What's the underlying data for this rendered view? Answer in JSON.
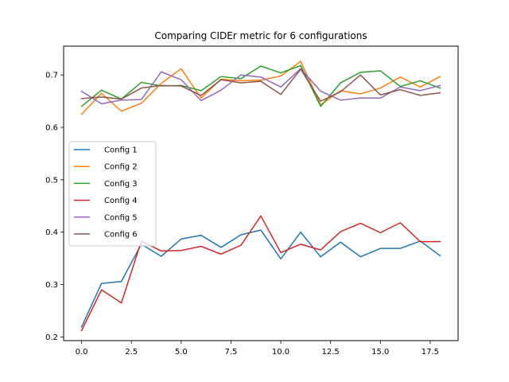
{
  "chart_data": {
    "type": "line",
    "title": "Comparing CIDEr metric for 6 configurations",
    "xlabel": "",
    "ylabel": "",
    "xlim": [
      -0.9,
      18.9
    ],
    "ylim": [
      0.193,
      0.755
    ],
    "xticks": [
      0.0,
      2.5,
      5.0,
      7.5,
      10.0,
      12.5,
      15.0,
      17.5
    ],
    "xtick_labels": [
      "0.0",
      "2.5",
      "5.0",
      "7.5",
      "10.0",
      "12.5",
      "15.0",
      "17.5"
    ],
    "yticks": [
      0.2,
      0.3,
      0.4,
      0.5,
      0.6,
      0.7
    ],
    "ytick_labels": [
      "0.2",
      "0.3",
      "0.4",
      "0.5",
      "0.6",
      "0.7"
    ],
    "grid": false,
    "legend_position": "center-left",
    "x": [
      0,
      1,
      2,
      3,
      4,
      5,
      6,
      7,
      8,
      9,
      10,
      11,
      12,
      13,
      14,
      15,
      16,
      17,
      18
    ],
    "series": [
      {
        "name": "Config 1",
        "color": "#1f77b4",
        "values": [
          0.219,
          0.302,
          0.306,
          0.377,
          0.354,
          0.387,
          0.394,
          0.371,
          0.395,
          0.404,
          0.349,
          0.4,
          0.353,
          0.381,
          0.353,
          0.369,
          0.369,
          0.383,
          0.355
        ]
      },
      {
        "name": "Config 2",
        "color": "#ff7f0e",
        "values": [
          0.625,
          0.665,
          0.631,
          0.646,
          0.684,
          0.712,
          0.656,
          0.692,
          0.689,
          0.69,
          0.698,
          0.726,
          0.643,
          0.67,
          0.664,
          0.675,
          0.696,
          0.677,
          0.697
        ]
      },
      {
        "name": "Config 3",
        "color": "#2ca02c",
        "values": [
          0.64,
          0.671,
          0.654,
          0.686,
          0.679,
          0.68,
          0.67,
          0.697,
          0.693,
          0.717,
          0.704,
          0.718,
          0.64,
          0.685,
          0.705,
          0.708,
          0.678,
          0.689,
          0.675
        ]
      },
      {
        "name": "Config 4",
        "color": "#d62728",
        "values": [
          0.212,
          0.29,
          0.265,
          0.383,
          0.364,
          0.365,
          0.373,
          0.358,
          0.375,
          0.431,
          0.361,
          0.377,
          0.366,
          0.401,
          0.417,
          0.399,
          0.418,
          0.382,
          0.382
        ]
      },
      {
        "name": "Config 5",
        "color": "#9467bd",
        "values": [
          0.669,
          0.645,
          0.652,
          0.653,
          0.706,
          0.691,
          0.651,
          0.671,
          0.7,
          0.696,
          0.677,
          0.712,
          0.669,
          0.652,
          0.656,
          0.656,
          0.677,
          0.67,
          0.68
        ]
      },
      {
        "name": "Config 6",
        "color": "#8c564b",
        "values": [
          0.655,
          0.658,
          0.654,
          0.675,
          0.68,
          0.679,
          0.661,
          0.691,
          0.685,
          0.688,
          0.663,
          0.711,
          0.65,
          0.668,
          0.7,
          0.662,
          0.672,
          0.661,
          0.666
        ]
      }
    ]
  }
}
